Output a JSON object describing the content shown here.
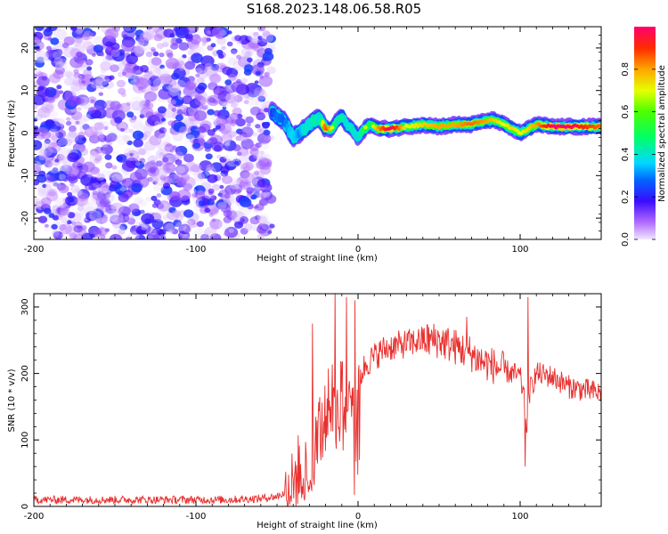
{
  "title": "S168.2023.148.06.58.R05",
  "chart_data": [
    {
      "type": "heatmap",
      "xlabel": "Height of straight line (km)",
      "ylabel": "Frequency (Hz)",
      "xlim": [
        -200,
        150
      ],
      "ylim": [
        -25,
        25
      ],
      "x_ticks": [
        -200,
        -100,
        0,
        100
      ],
      "y_ticks": [
        -20,
        -10,
        0,
        10,
        20
      ],
      "noise_region_x": [
        -200,
        -53
      ],
      "noise_freq_range": [
        -25,
        25
      ],
      "signal_track": {
        "x": [
          -53,
          -50,
          -46,
          -43,
          -40,
          -36,
          -33,
          -30,
          -27,
          -24,
          -20,
          -16,
          -13,
          -10,
          -7,
          -4,
          0,
          4,
          8,
          12,
          20,
          30,
          40,
          50,
          60,
          70,
          80,
          85,
          90,
          95,
          100,
          105,
          110,
          120,
          130,
          140,
          150
        ],
        "freq": [
          5,
          4,
          3,
          1,
          -1,
          0,
          1,
          2,
          3,
          3.5,
          1,
          1,
          3,
          4,
          2,
          1,
          -1,
          1,
          2,
          1,
          1,
          1.5,
          2,
          1.5,
          2,
          2,
          3,
          3,
          2,
          1,
          0,
          1,
          2,
          1.5,
          1.5,
          1.5,
          1.5
        ],
        "amplitude": [
          0.3,
          0.4,
          0.35,
          0.45,
          0.5,
          0.4,
          0.55,
          0.5,
          0.6,
          0.5,
          0.9,
          0.7,
          0.55,
          0.6,
          0.5,
          0.55,
          0.5,
          0.7,
          0.65,
          0.8,
          1.0,
          0.7,
          0.75,
          0.8,
          0.8,
          0.85,
          0.8,
          0.75,
          0.7,
          0.75,
          0.7,
          0.75,
          0.8,
          1.0,
          1.0,
          0.9,
          0.85
        ]
      },
      "colorbar": {
        "label": "Normalized spectral amplitude",
        "ticks": [
          0.0,
          0.2,
          0.4,
          0.6,
          0.8
        ],
        "range": [
          0,
          1
        ],
        "colormap": "rainbow"
      }
    },
    {
      "type": "line",
      "xlabel": "Height of straight line (km)",
      "ylabel": "SNR (10 * v/v)",
      "xlim": [
        -200,
        150
      ],
      "ylim": [
        0,
        320
      ],
      "x_ticks": [
        -200,
        -100,
        0,
        100
      ],
      "y_ticks": [
        0,
        100,
        200,
        300
      ],
      "color": "#e8312f",
      "series": [
        {
          "x": [
            -200,
            -180,
            -160,
            -140,
            -120,
            -100,
            -80,
            -60,
            -50,
            -45,
            -40,
            -37,
            -34,
            -31,
            -28,
            -25,
            -22,
            -19,
            -16,
            -14,
            -12,
            -10,
            -8,
            -6,
            -4,
            -2,
            0,
            2,
            5,
            10,
            15,
            20,
            30,
            40,
            50,
            55,
            60,
            65,
            70,
            72,
            75,
            80,
            85,
            90,
            95,
            100,
            102,
            104,
            106,
            110,
            120,
            130,
            140,
            150
          ],
          "y": [
            10,
            10,
            10,
            10,
            10,
            10,
            10,
            12,
            15,
            20,
            30,
            55,
            70,
            45,
            90,
            130,
            110,
            150,
            165,
            120,
            150,
            180,
            130,
            200,
            170,
            140,
            190,
            200,
            215,
            225,
            235,
            240,
            245,
            250,
            250,
            245,
            240,
            235,
            230,
            225,
            220,
            215,
            210,
            205,
            200,
            195,
            170,
            120,
            175,
            200,
            195,
            180,
            175,
            170
          ],
          "peaks": [
            {
              "x": -28,
              "y": 275
            },
            {
              "x": -14,
              "y": 325
            },
            {
              "x": -7,
              "y": 315
            },
            {
              "x": -2,
              "y": 310
            },
            {
              "x": 67,
              "y": 285
            },
            {
              "x": 105,
              "y": 315
            }
          ],
          "troughs": [
            {
              "x": 1,
              "y": 70
            },
            {
              "x": 103,
              "y": 60
            }
          ]
        }
      ]
    }
  ]
}
